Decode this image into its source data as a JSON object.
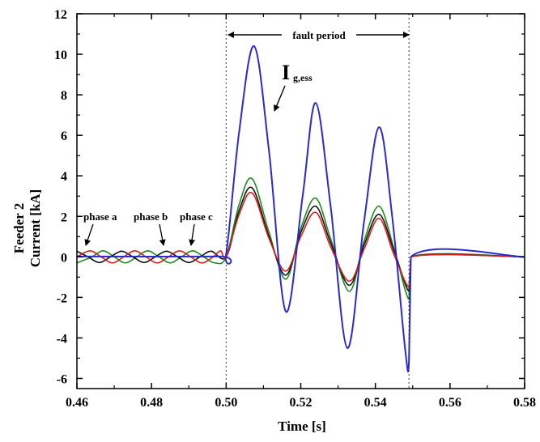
{
  "chart_data": {
    "type": "line",
    "xlabel": "Time [s]",
    "ylabel": [
      "Feeder 2",
      "Current [kA]"
    ],
    "xlim": [
      0.46,
      0.58
    ],
    "ylim": [
      -6.5,
      12
    ],
    "xticks": [
      "0.46",
      "0.48",
      "0.50",
      "0.52",
      "0.54",
      "0.56",
      "0.58"
    ],
    "yticks": [
      "-6",
      "-4",
      "-2",
      "0",
      "2",
      "4",
      "6",
      "8",
      "10",
      "12"
    ],
    "grid": false,
    "fault_start": 0.5,
    "fault_end": 0.549,
    "series": [
      {
        "color": "#2a2ad0",
        "points": [
          [
            0.46,
            0.02
          ],
          [
            0.498,
            0.02
          ],
          [
            0.5,
            0.15
          ],
          [
            0.5035,
            6.2
          ],
          [
            0.5075,
            10.4
          ],
          [
            0.5115,
            5.2
          ],
          [
            0.516,
            -2.7
          ],
          [
            0.5205,
            3.0
          ],
          [
            0.524,
            7.6
          ],
          [
            0.528,
            2.5
          ],
          [
            0.5325,
            -4.5
          ],
          [
            0.537,
            1.8
          ],
          [
            0.541,
            6.4
          ],
          [
            0.5445,
            2.0
          ],
          [
            0.548,
            -4.6
          ],
          [
            0.549,
            -5.2
          ],
          [
            0.5495,
            0.0
          ],
          [
            0.58,
            0.0
          ]
        ]
      },
      {
        "color": "#1f8a1f",
        "points": [
          [
            0.46,
            -0.3
          ],
          [
            0.464,
            0.0
          ],
          [
            0.467,
            0.3
          ],
          [
            0.47,
            0.0
          ],
          [
            0.473,
            -0.3
          ],
          [
            0.476,
            0.0
          ],
          [
            0.479,
            0.3
          ],
          [
            0.482,
            0.0
          ],
          [
            0.485,
            -0.3
          ],
          [
            0.488,
            0.0
          ],
          [
            0.491,
            0.3
          ],
          [
            0.494,
            0.0
          ],
          [
            0.497,
            -0.3
          ],
          [
            0.5,
            0.0
          ],
          [
            0.5035,
            2.6
          ],
          [
            0.507,
            3.85
          ],
          [
            0.5115,
            1.2
          ],
          [
            0.516,
            -1.1
          ],
          [
            0.52,
            1.4
          ],
          [
            0.524,
            2.9
          ],
          [
            0.528,
            0.9
          ],
          [
            0.533,
            -1.7
          ],
          [
            0.537,
            0.8
          ],
          [
            0.541,
            2.5
          ],
          [
            0.545,
            0.4
          ],
          [
            0.549,
            -2.1
          ],
          [
            0.5495,
            0.0
          ],
          [
            0.58,
            0.0
          ]
        ]
      },
      {
        "color": "#111111",
        "points": [
          [
            0.46,
            0.28
          ],
          [
            0.463,
            0.0
          ],
          [
            0.466,
            -0.28
          ],
          [
            0.469,
            0.0
          ],
          [
            0.472,
            0.28
          ],
          [
            0.475,
            0.0
          ],
          [
            0.478,
            -0.28
          ],
          [
            0.481,
            0.0
          ],
          [
            0.484,
            0.28
          ],
          [
            0.487,
            0.0
          ],
          [
            0.49,
            -0.28
          ],
          [
            0.493,
            0.0
          ],
          [
            0.496,
            0.28
          ],
          [
            0.5,
            0.0
          ],
          [
            0.5035,
            2.3
          ],
          [
            0.507,
            3.4
          ],
          [
            0.5115,
            1.0
          ],
          [
            0.516,
            -0.9
          ],
          [
            0.52,
            1.2
          ],
          [
            0.524,
            2.5
          ],
          [
            0.528,
            0.7
          ],
          [
            0.533,
            -1.4
          ],
          [
            0.537,
            0.6
          ],
          [
            0.541,
            2.1
          ],
          [
            0.545,
            0.3
          ],
          [
            0.549,
            -1.7
          ],
          [
            0.5495,
            0.0
          ],
          [
            0.58,
            0.0
          ]
        ]
      },
      {
        "color": "#d62020",
        "points": [
          [
            0.46,
            0.0
          ],
          [
            0.4635,
            0.3
          ],
          [
            0.4665,
            0.0
          ],
          [
            0.4695,
            -0.3
          ],
          [
            0.4725,
            0.0
          ],
          [
            0.4755,
            0.3
          ],
          [
            0.4785,
            0.0
          ],
          [
            0.4815,
            -0.3
          ],
          [
            0.4845,
            0.0
          ],
          [
            0.4875,
            0.3
          ],
          [
            0.4905,
            0.0
          ],
          [
            0.4935,
            -0.3
          ],
          [
            0.4965,
            0.0
          ],
          [
            0.4985,
            0.3
          ],
          [
            0.5,
            0.0
          ],
          [
            0.5035,
            2.1
          ],
          [
            0.507,
            3.15
          ],
          [
            0.5115,
            0.9
          ],
          [
            0.516,
            -0.7
          ],
          [
            0.52,
            1.0
          ],
          [
            0.524,
            2.2
          ],
          [
            0.528,
            0.5
          ],
          [
            0.533,
            -1.2
          ],
          [
            0.537,
            0.4
          ],
          [
            0.541,
            1.9
          ],
          [
            0.545,
            0.1
          ],
          [
            0.549,
            -1.5
          ],
          [
            0.5495,
            0.0
          ],
          [
            0.58,
            0.0
          ]
        ]
      }
    ],
    "annotations": {
      "fault_period": "fault period",
      "phase_a": "phase a",
      "phase_b": "phase b",
      "phase_c": "phase c",
      "ig_main": "I",
      "ig_sub": "g,ess"
    }
  }
}
